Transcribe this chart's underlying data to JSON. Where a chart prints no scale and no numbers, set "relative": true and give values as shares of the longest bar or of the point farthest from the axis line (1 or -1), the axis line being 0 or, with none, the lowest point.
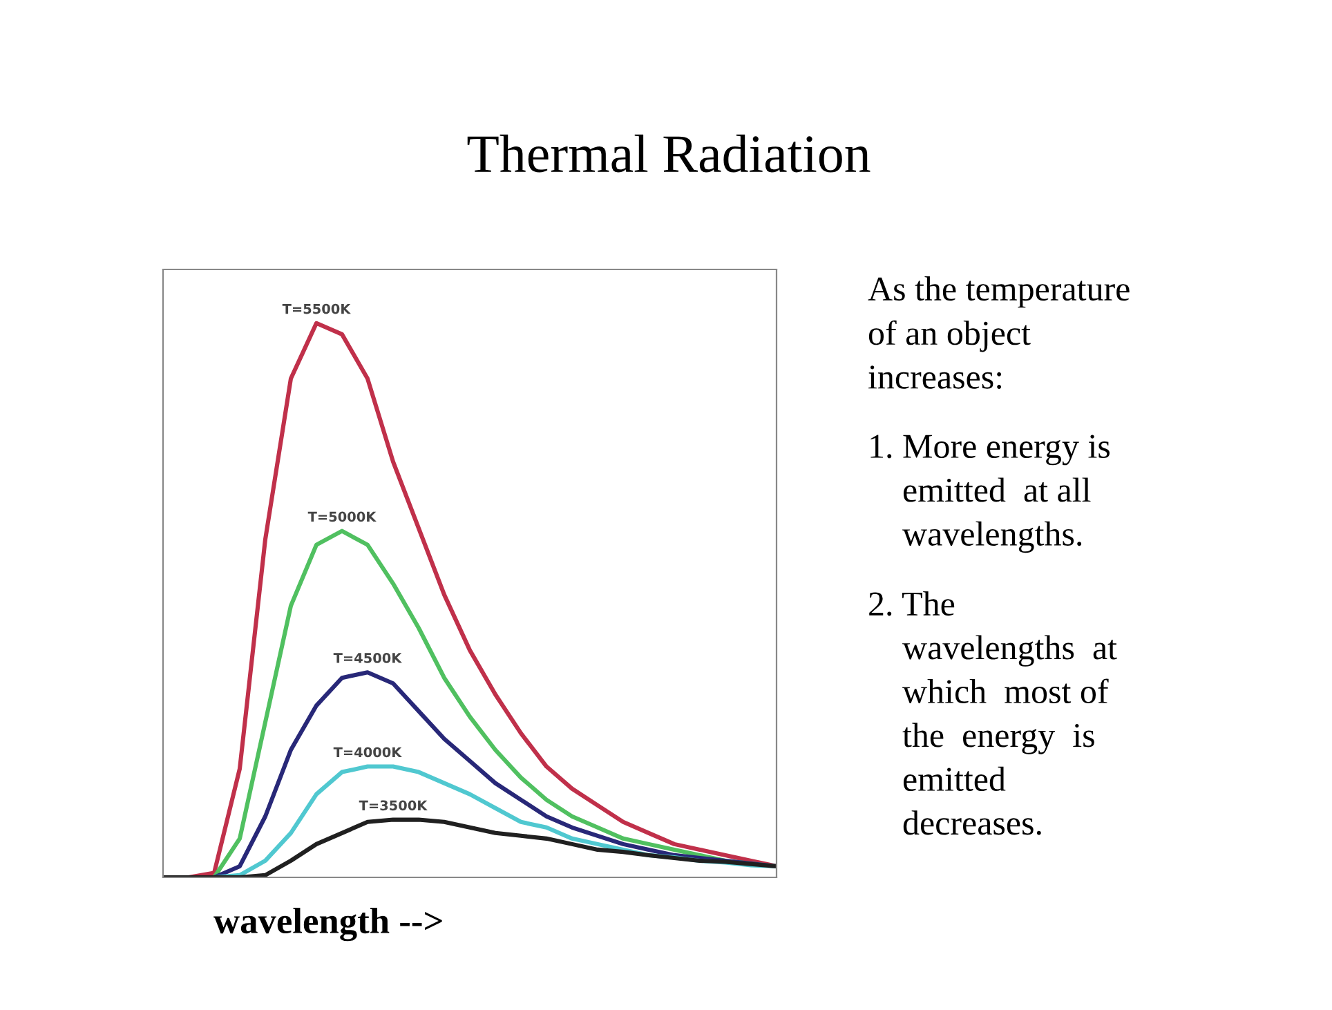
{
  "chart_data": {
    "type": "line",
    "title": "Thermal Radiation",
    "xlabel": "wavelength -->",
    "relative": true,
    "grid": false,
    "legend": false,
    "marker": "none",
    "line_style": "solid",
    "categories": [
      null,
      null,
      null,
      null,
      null,
      null,
      null,
      null,
      null,
      null,
      null,
      null,
      null,
      null,
      null,
      null,
      null,
      null,
      null,
      null,
      null,
      null,
      null,
      null,
      null
    ],
    "series": [
      {
        "name": "T=5500K",
        "color": "#c0304a",
        "values": [
          0,
          0,
          0.008,
          0.196,
          0.61,
          0.9,
          1,
          0.98,
          0.9,
          0.75,
          0.63,
          0.51,
          0.41,
          0.33,
          0.26,
          0.2,
          0.16,
          0.13,
          0.1,
          0.08,
          0.06,
          0.05,
          0.04,
          0.03,
          0.02
        ]
      },
      {
        "name": "T=5000K",
        "color": "#50c060",
        "values": [
          0,
          0,
          0,
          0.07,
          0.28,
          0.49,
          0.6,
          0.625,
          0.6,
          0.53,
          0.45,
          0.36,
          0.29,
          0.23,
          0.18,
          0.14,
          0.11,
          0.09,
          0.07,
          0.06,
          0.05,
          0.04,
          0.03,
          0.025,
          0.02
        ]
      },
      {
        "name": "T=4500K",
        "color": "#282878",
        "values": [
          0,
          0,
          0,
          0.02,
          0.11,
          0.23,
          0.31,
          0.36,
          0.37,
          0.35,
          0.3,
          0.25,
          0.21,
          0.17,
          0.14,
          0.11,
          0.09,
          0.075,
          0.06,
          0.05,
          0.04,
          0.035,
          0.03,
          0.025,
          0.02
        ]
      },
      {
        "name": "T=4000K",
        "color": "#50c8d0",
        "values": [
          0,
          0,
          0,
          0.004,
          0.03,
          0.08,
          0.15,
          0.19,
          0.2,
          0.2,
          0.19,
          0.17,
          0.15,
          0.125,
          0.1,
          0.09,
          0.07,
          0.06,
          0.05,
          0.04,
          0.036,
          0.03,
          0.027,
          0.022,
          0.02
        ]
      },
      {
        "name": "T=3500K",
        "color": "#202020",
        "values": [
          0,
          0,
          0,
          0,
          0.004,
          0.03,
          0.06,
          0.08,
          0.1,
          0.104,
          0.104,
          0.1,
          0.09,
          0.08,
          0.075,
          0.07,
          0.06,
          0.05,
          0.046,
          0.04,
          0.035,
          0.03,
          0.028,
          0.024,
          0.02
        ]
      }
    ],
    "annotations": [
      "As the temperature\nof an object\nincreases:",
      "1. More energy is\n    emitted  at all\n    wavelengths.",
      "2. The\n    wavelengths  at\n    which  most of\n    the  energy  is\n    emitted\n    decreases."
    ]
  }
}
